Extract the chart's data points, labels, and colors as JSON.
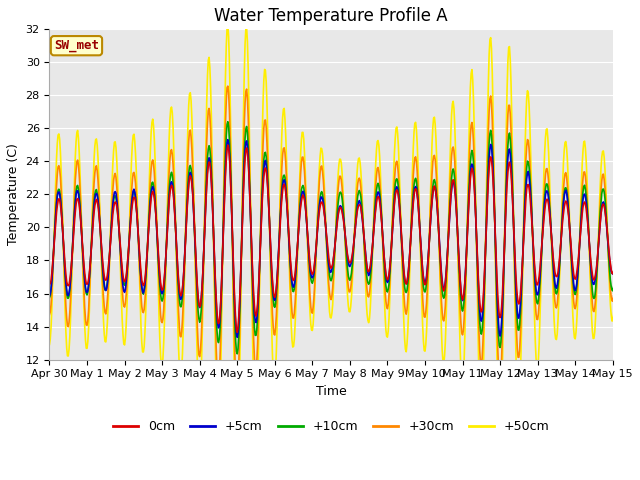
{
  "title": "Water Temperature Profile A",
  "xlabel": "Time",
  "ylabel": "Temperature (C)",
  "ylim": [
    12,
    32
  ],
  "plot_bg": "#e8e8e8",
  "fig_bg": "#ffffff",
  "grid_color": "#ffffff",
  "annotation_text": "SW_met",
  "annotation_bg": "#ffffcc",
  "annotation_border": "#bb8800",
  "annotation_text_color": "#990000",
  "legend_labels": [
    "0cm",
    "+5cm",
    "+10cm",
    "+30cm",
    "+50cm"
  ],
  "legend_colors": [
    "#dd0000",
    "#0000cc",
    "#00aa00",
    "#ff8800",
    "#ffee00"
  ],
  "tick_labels": [
    "Apr 30",
    "May 1",
    "May 2",
    "May 3",
    "May 4",
    "May 5",
    "May 6",
    "May 7",
    "May 8",
    "May 9",
    "May 10",
    "May 11",
    "May 12",
    "May 13",
    "May 14",
    "May 15"
  ],
  "num_days": 16,
  "ppd": 48,
  "title_fontsize": 12,
  "axis_label_fontsize": 9,
  "tick_fontsize": 8,
  "line_width": 1.2,
  "figsize": [
    6.4,
    4.8
  ],
  "dpi": 100
}
